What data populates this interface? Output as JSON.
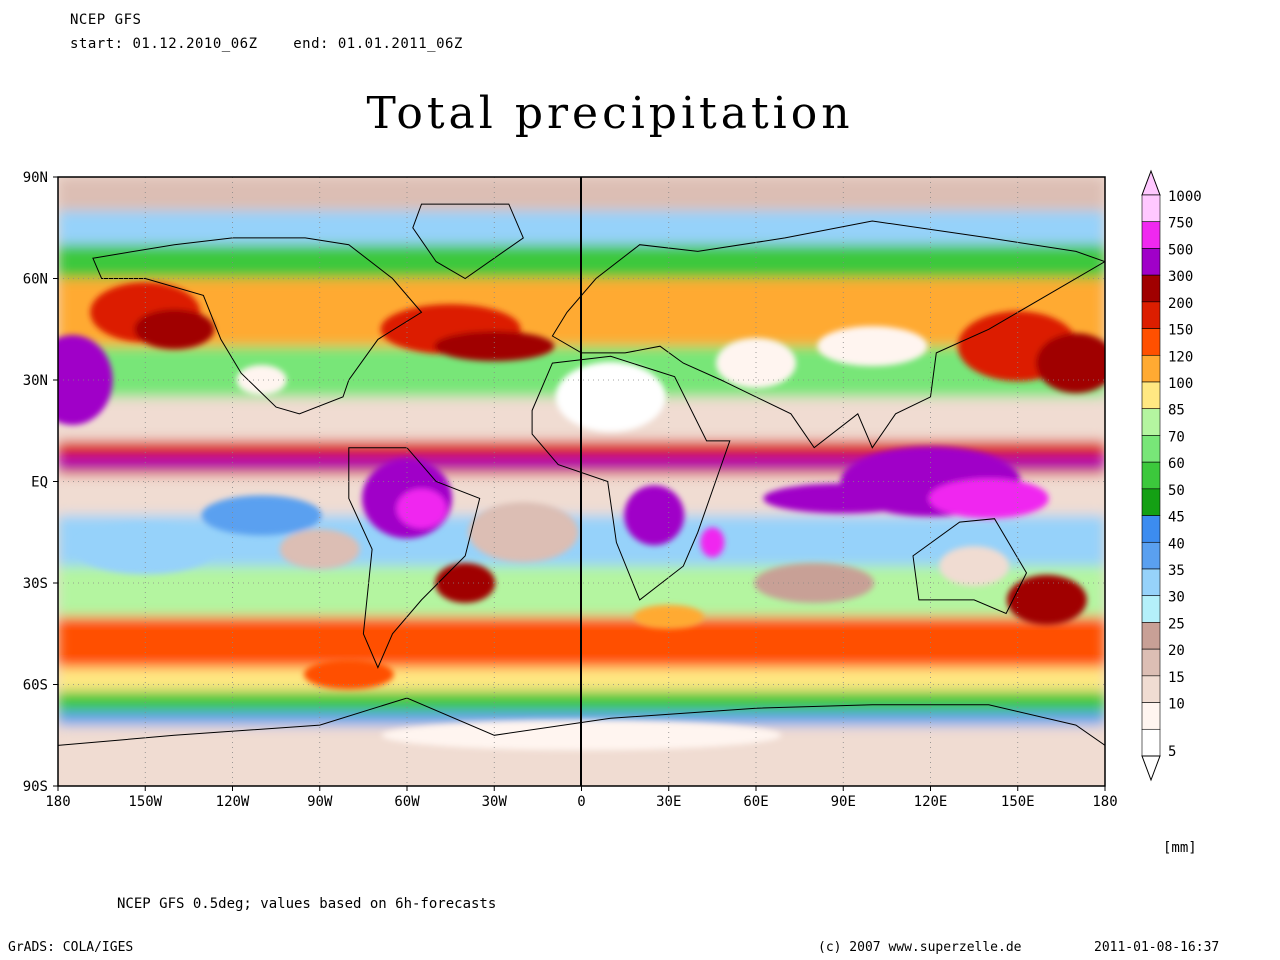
{
  "header": {
    "model": "NCEP GFS",
    "period": "start: 01.12.2010_06Z    end: 01.01.2011_06Z"
  },
  "title": "Total precipitation",
  "map": {
    "x_ticks": [
      "180",
      "150W",
      "120W",
      "90W",
      "60W",
      "30W",
      "0",
      "30E",
      "60E",
      "90E",
      "120E",
      "150E",
      "180"
    ],
    "y_ticks": [
      "90N",
      "60N",
      "30N",
      "EQ",
      "30S",
      "60S",
      "90S"
    ]
  },
  "legend": {
    "levels": [
      {
        "label": "1000",
        "color": "#ffc8ff"
      },
      {
        "label": "750",
        "color": "#f028f0"
      },
      {
        "label": "500",
        "color": "#a000c8"
      },
      {
        "label": "300",
        "color": "#a00000"
      },
      {
        "label": "200",
        "color": "#dc1e00"
      },
      {
        "label": "150",
        "color": "#ff5000"
      },
      {
        "label": "120",
        "color": "#ffaa32"
      },
      {
        "label": "100",
        "color": "#ffe882"
      },
      {
        "label": "85",
        "color": "#b4f5a0"
      },
      {
        "label": "70",
        "color": "#78e678"
      },
      {
        "label": "60",
        "color": "#3cc83c"
      },
      {
        "label": "50",
        "color": "#14a014"
      },
      {
        "label": "45",
        "color": "#3c8cf0"
      },
      {
        "label": "40",
        "color": "#5aa0f0"
      },
      {
        "label": "35",
        "color": "#96d2fa"
      },
      {
        "label": "30",
        "color": "#b4f0fa"
      },
      {
        "label": "25",
        "color": "#c8a096"
      },
      {
        "label": "20",
        "color": "#dcbeb4"
      },
      {
        "label": "15",
        "color": "#f0dcd2"
      },
      {
        "label": "10",
        "color": "#fff5f0"
      },
      {
        "label": "5",
        "color": "#ffffff"
      }
    ]
  },
  "units": "[mm]",
  "footer": {
    "note": "NCEP GFS 0.5deg; values based on 6h-forecasts",
    "software": "GrADS: COLA/IGES",
    "copyright": "(c) 2007 www.superzelle.de",
    "timestamp": "2011-01-08-16:37"
  }
}
